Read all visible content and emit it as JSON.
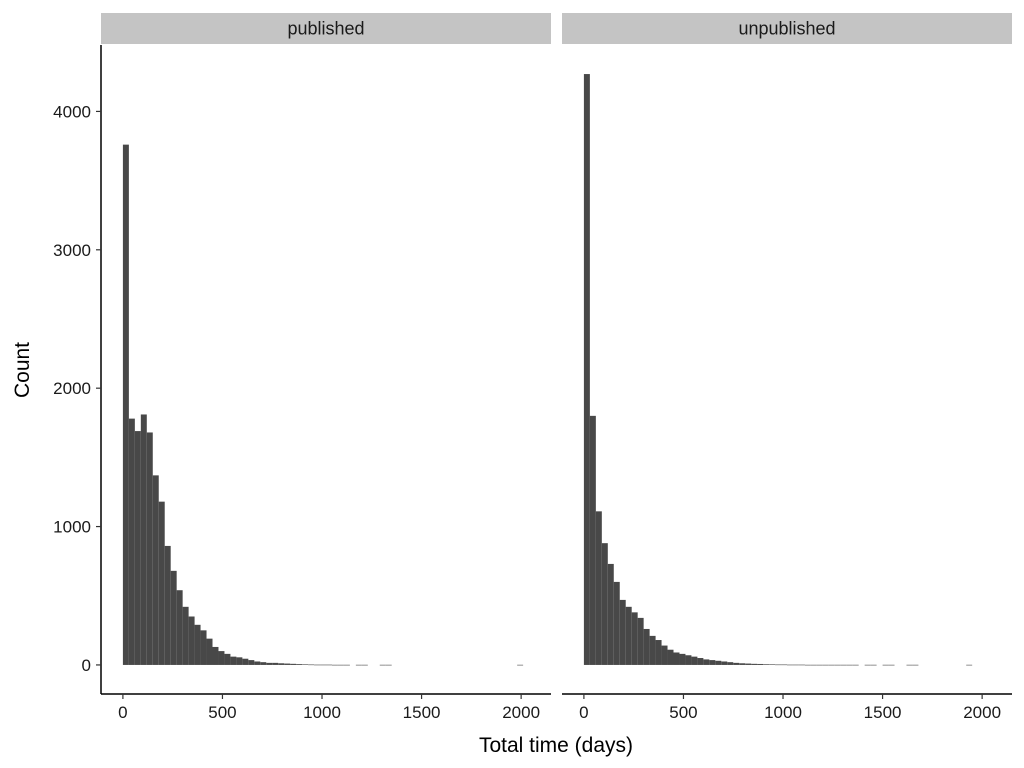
{
  "chart_data": {
    "type": "bar",
    "subtype": "faceted-histogram",
    "xlabel": "Total time (days)",
    "ylabel": "Count",
    "x_ticks": [
      0,
      500,
      1000,
      1500,
      2000
    ],
    "y_ticks": [
      0,
      1000,
      2000,
      3000,
      4000
    ],
    "xlim": [
      -110,
      2150
    ],
    "ylim": [
      -210,
      4480
    ],
    "bin_width": 30,
    "bin_start": 0,
    "grid": false,
    "bar_color": "#484848",
    "strip_color": "#c4c4c4",
    "panels": [
      {
        "name": "published",
        "values": [
          3760,
          1780,
          1690,
          1810,
          1680,
          1370,
          1180,
          860,
          680,
          540,
          420,
          350,
          290,
          250,
          190,
          130,
          100,
          80,
          60,
          55,
          45,
          35,
          25,
          20,
          15,
          15,
          12,
          10,
          8,
          6,
          4,
          3,
          2,
          2,
          2,
          1,
          1,
          1,
          0,
          1,
          1,
          0,
          0,
          1,
          1,
          0,
          0,
          0,
          0,
          0,
          0,
          0,
          0,
          0,
          0,
          0,
          0,
          0,
          0,
          0,
          0,
          0,
          0,
          0,
          0,
          0,
          1
        ]
      },
      {
        "name": "unpublished",
        "values": [
          4270,
          1800,
          1110,
          880,
          730,
          600,
          470,
          420,
          380,
          340,
          260,
          210,
          180,
          140,
          110,
          90,
          80,
          70,
          60,
          50,
          40,
          35,
          30,
          25,
          20,
          15,
          12,
          10,
          8,
          7,
          5,
          4,
          3,
          3,
          2,
          2,
          2,
          1,
          1,
          1,
          1,
          1,
          1,
          1,
          1,
          1,
          0,
          1,
          1,
          0,
          1,
          1,
          0,
          0,
          1,
          1,
          0,
          0,
          0,
          0,
          0,
          0,
          0,
          0,
          1
        ]
      }
    ]
  }
}
